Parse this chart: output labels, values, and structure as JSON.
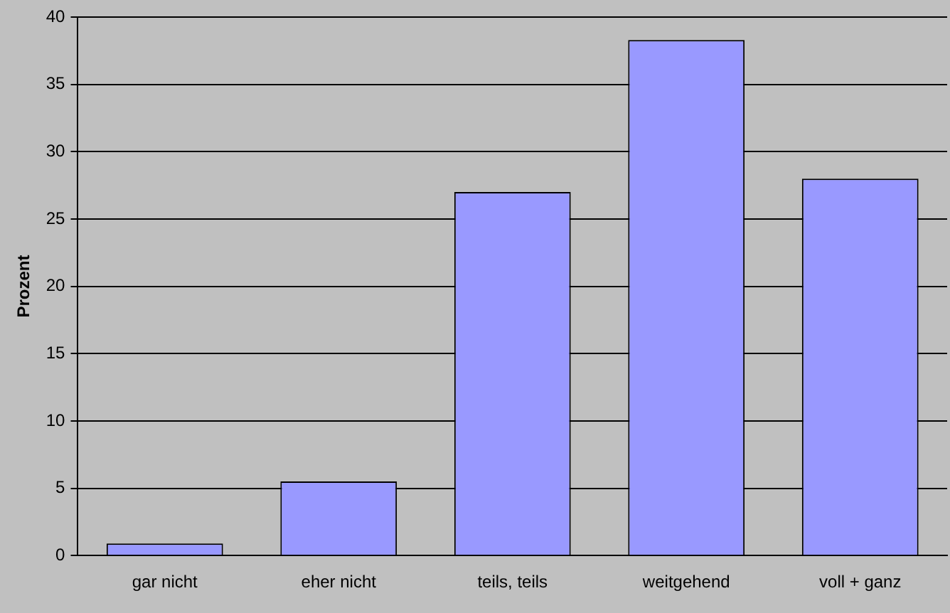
{
  "chart_data": {
    "type": "bar",
    "ylabel": "Prozent",
    "categories": [
      "gar nicht",
      "eher nicht",
      "teils, teils",
      "weitgehend",
      "voll + ganz"
    ],
    "values": [
      0.9,
      5.5,
      27.0,
      38.3,
      28.0
    ],
    "color": "#9999ff",
    "ylim": [
      0,
      40
    ],
    "yticks": [
      0,
      5,
      10,
      15,
      20,
      25,
      30,
      35,
      40
    ],
    "grid": "y",
    "legend": false
  }
}
